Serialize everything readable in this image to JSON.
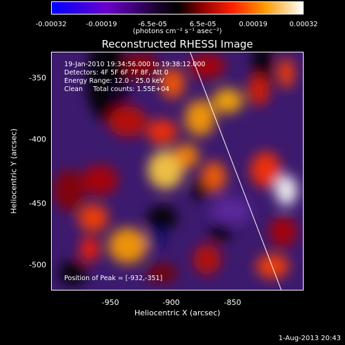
{
  "colorbar": {
    "ticks": [
      "-0.00032",
      "-0.00019",
      "-6.5e-05",
      "6.5e-05",
      "0.00019",
      "0.00032"
    ],
    "unit_label": "(photons cm⁻² s⁻¹ asec⁻²)",
    "colors": [
      "#0000ff",
      "#6e00c8",
      "#000000",
      "#b00000",
      "#ff3000",
      "#ffb000",
      "#ffffff"
    ]
  },
  "chart_data": {
    "type": "heatmap",
    "title": "Reconstructed RHESSI Image",
    "xlabel": "Heliocentric X (arcsec)",
    "ylabel": "Heliocentric Y (arcsec)",
    "xlim": [
      -995,
      -810
    ],
    "ylim": [
      -522,
      -327
    ],
    "xticks": [
      -950,
      -900,
      -850
    ],
    "yticks": [
      -350,
      -400,
      -450,
      -500
    ],
    "clim": [
      -0.00032,
      0.00032
    ],
    "annotations": [
      "19-Jan-2010 19:34:56.000 to 19:38:12.000",
      "Detectors: 4F 5F 6F 7F 8F, Att 0",
      "Energy Range: 12.0 - 25.0 keV",
      "Clean     Total counts: 1.55E+04"
    ],
    "peak_label": "Position of Peak = [-932,-351]",
    "limb_line": {
      "x": [
        -893,
        -826
      ],
      "y": [
        -327,
        -522
      ]
    }
  },
  "footer": {
    "date": "1-Aug-2013 20:43"
  }
}
